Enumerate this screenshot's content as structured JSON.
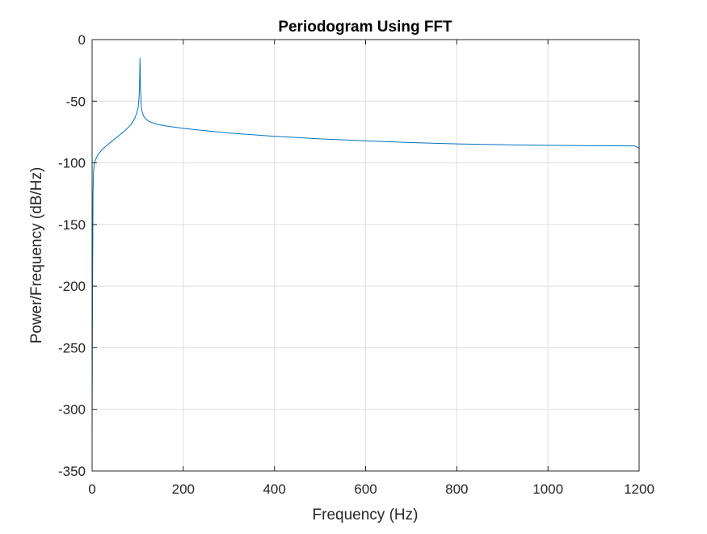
{
  "chart_data": {
    "type": "line",
    "title": "Periodogram Using FFT",
    "xlabel": "Frequency (Hz)",
    "ylabel": "Power/Frequency (dB/Hz)",
    "xlim": [
      0,
      1200
    ],
    "ylim": [
      -350,
      0
    ],
    "xticks": [
      0,
      200,
      400,
      600,
      800,
      1000,
      1200
    ],
    "yticks": [
      0,
      -50,
      -100,
      -150,
      -200,
      -250,
      -300,
      -350
    ],
    "xtick_labels": [
      "0",
      "200",
      "400",
      "600",
      "800",
      "1000",
      "1200"
    ],
    "ytick_labels": [
      "0",
      "-50",
      "-100",
      "-150",
      "-200",
      "-250",
      "-300",
      "-350"
    ],
    "grid": true,
    "series": [
      {
        "color": "#0072BD",
        "x": [
          0,
          1,
          2,
          3,
          5,
          8,
          12,
          20,
          30,
          40,
          50,
          60,
          70,
          80,
          88,
          94,
          98,
          101,
          103,
          104,
          105,
          106,
          107,
          108,
          110,
          113,
          118,
          125,
          140,
          160,
          200,
          250,
          300,
          400,
          500,
          600,
          700,
          800,
          900,
          1000,
          1100,
          1150,
          1190,
          1200
        ],
        "y": [
          -320,
          -205,
          -125,
          -108,
          -100,
          -97,
          -94,
          -90,
          -86.5,
          -83.5,
          -80.5,
          -77.5,
          -74.5,
          -71,
          -67.5,
          -63.5,
          -59.5,
          -55,
          -47,
          -38,
          -15,
          -38,
          -47,
          -55,
          -59,
          -62,
          -64.5,
          -66.5,
          -68.5,
          -70,
          -72,
          -74,
          -75.8,
          -78.5,
          -80.5,
          -82.2,
          -83.6,
          -84.6,
          -85.3,
          -85.8,
          -86.1,
          -86.2,
          -86.3,
          -88
        ]
      }
    ]
  }
}
